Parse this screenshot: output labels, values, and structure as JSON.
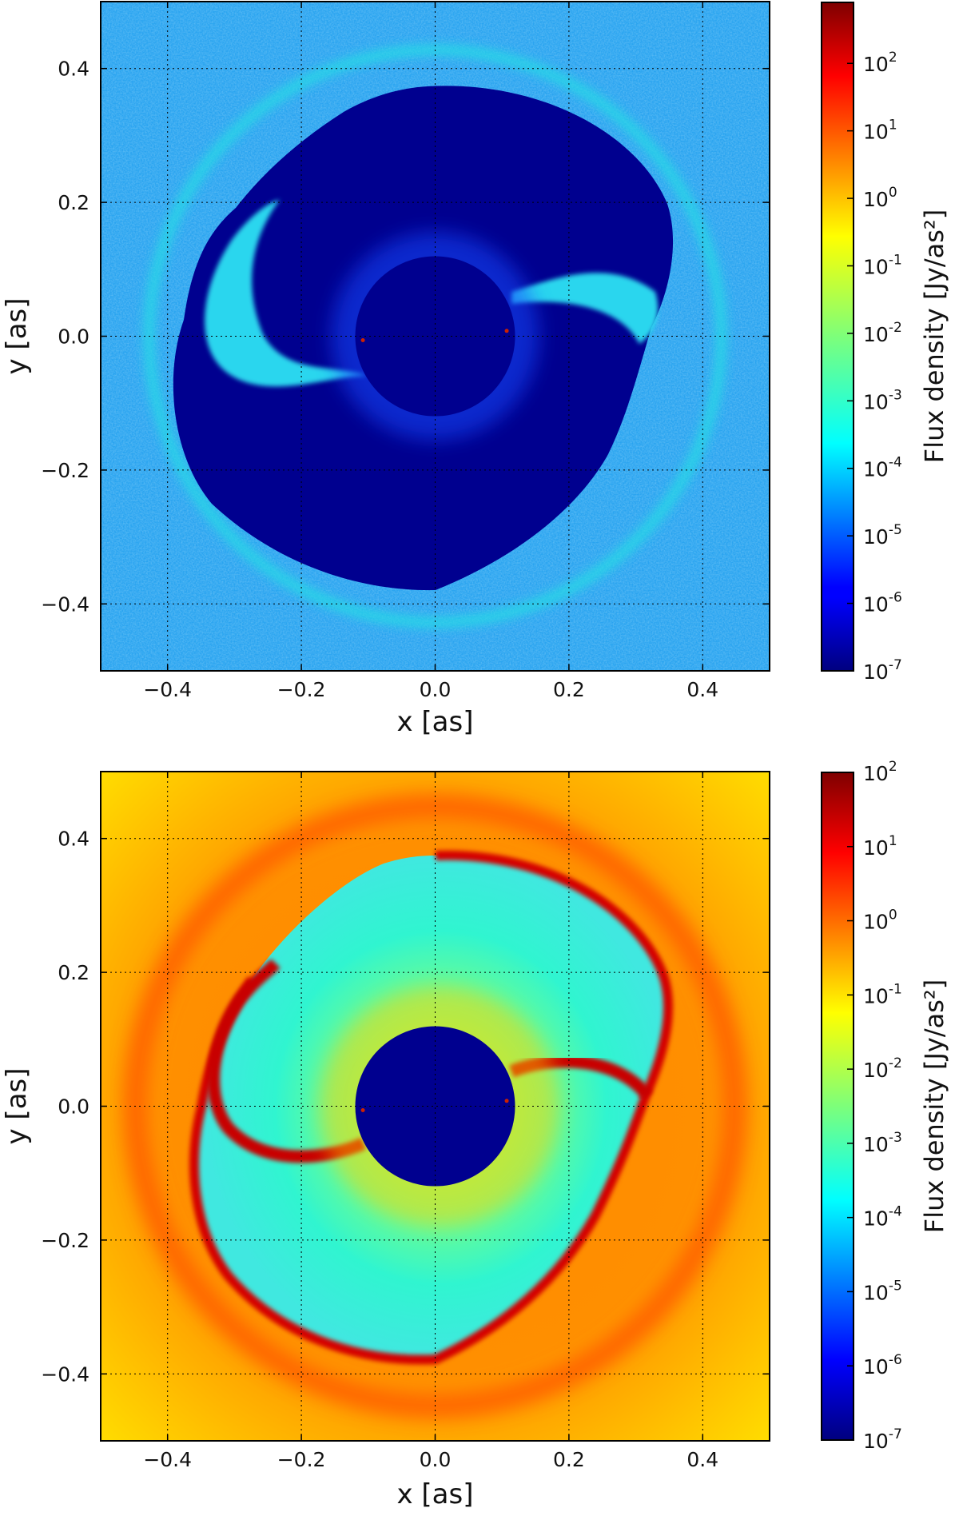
{
  "chart_data": [
    {
      "type": "heatmap",
      "panel": "top",
      "xlabel": "x [as]",
      "ylabel": "y [as]",
      "xlim": [
        -0.5,
        0.5
      ],
      "ylim": [
        -0.5,
        0.5
      ],
      "xticks": [
        -0.4,
        -0.2,
        0.0,
        0.2,
        0.4
      ],
      "yticks": [
        -0.4,
        -0.2,
        0.0,
        0.2,
        0.4
      ],
      "xtick_labels": [
        "−0.4",
        "−0.2",
        "0.0",
        "0.2",
        "0.4"
      ],
      "ytick_labels": [
        "−0.4",
        "−0.2",
        "0.0",
        "0.2",
        "0.4"
      ],
      "grid": true,
      "colorbar": {
        "label": "Flux density [Jy/as²]",
        "scale": "log",
        "range": [
          1e-07,
          800
        ],
        "tick_values": [
          1e-07,
          1e-06,
          1e-05,
          0.0001,
          0.001,
          0.01,
          0.1,
          1,
          10,
          100
        ],
        "tick_exponents": [
          "-7",
          "-6",
          "-5",
          "-4",
          "-3",
          "-2",
          "-1",
          "0",
          "1",
          "2"
        ],
        "colormap": "jet"
      },
      "masked_disk_radius": 0.12,
      "stars": [
        {
          "x": -0.108,
          "y": -0.006
        },
        {
          "x": 0.107,
          "y": 0.008
        }
      ],
      "structure": "noisy near-zero flux (deep blue) cavity inside ring of radius ~0.4, background ~1e-4"
    },
    {
      "type": "heatmap",
      "panel": "bottom",
      "xlabel": "x [as]",
      "ylabel": "y [as]",
      "xlim": [
        -0.5,
        0.5
      ],
      "ylim": [
        -0.5,
        0.5
      ],
      "xticks": [
        -0.4,
        -0.2,
        0.0,
        0.2,
        0.4
      ],
      "yticks": [
        -0.4,
        -0.2,
        0.0,
        0.2,
        0.4
      ],
      "xtick_labels": [
        "−0.4",
        "−0.2",
        "0.0",
        "0.2",
        "0.4"
      ],
      "ytick_labels": [
        "−0.4",
        "−0.2",
        "0.0",
        "0.2",
        "0.4"
      ],
      "grid": true,
      "colorbar": {
        "label": "Flux density [Jy/as²]",
        "scale": "log",
        "range": [
          1e-07,
          100
        ],
        "tick_values": [
          1e-07,
          1e-06,
          1e-05,
          0.0001,
          0.001,
          0.01,
          0.1,
          1,
          10,
          100
        ],
        "tick_exponents": [
          "-7",
          "-6",
          "-5",
          "-4",
          "-3",
          "-2",
          "-1",
          "0",
          "1",
          "2"
        ],
        "colormap": "jet"
      },
      "masked_disk_radius": 0.12,
      "stars": [
        {
          "x": -0.108,
          "y": -0.006
        },
        {
          "x": 0.107,
          "y": 0.008
        }
      ],
      "structure": "bright red spiral shocks and outer ring (~1e1), orange background (~1), cyan-green inner cavity (~1e-3)"
    }
  ]
}
